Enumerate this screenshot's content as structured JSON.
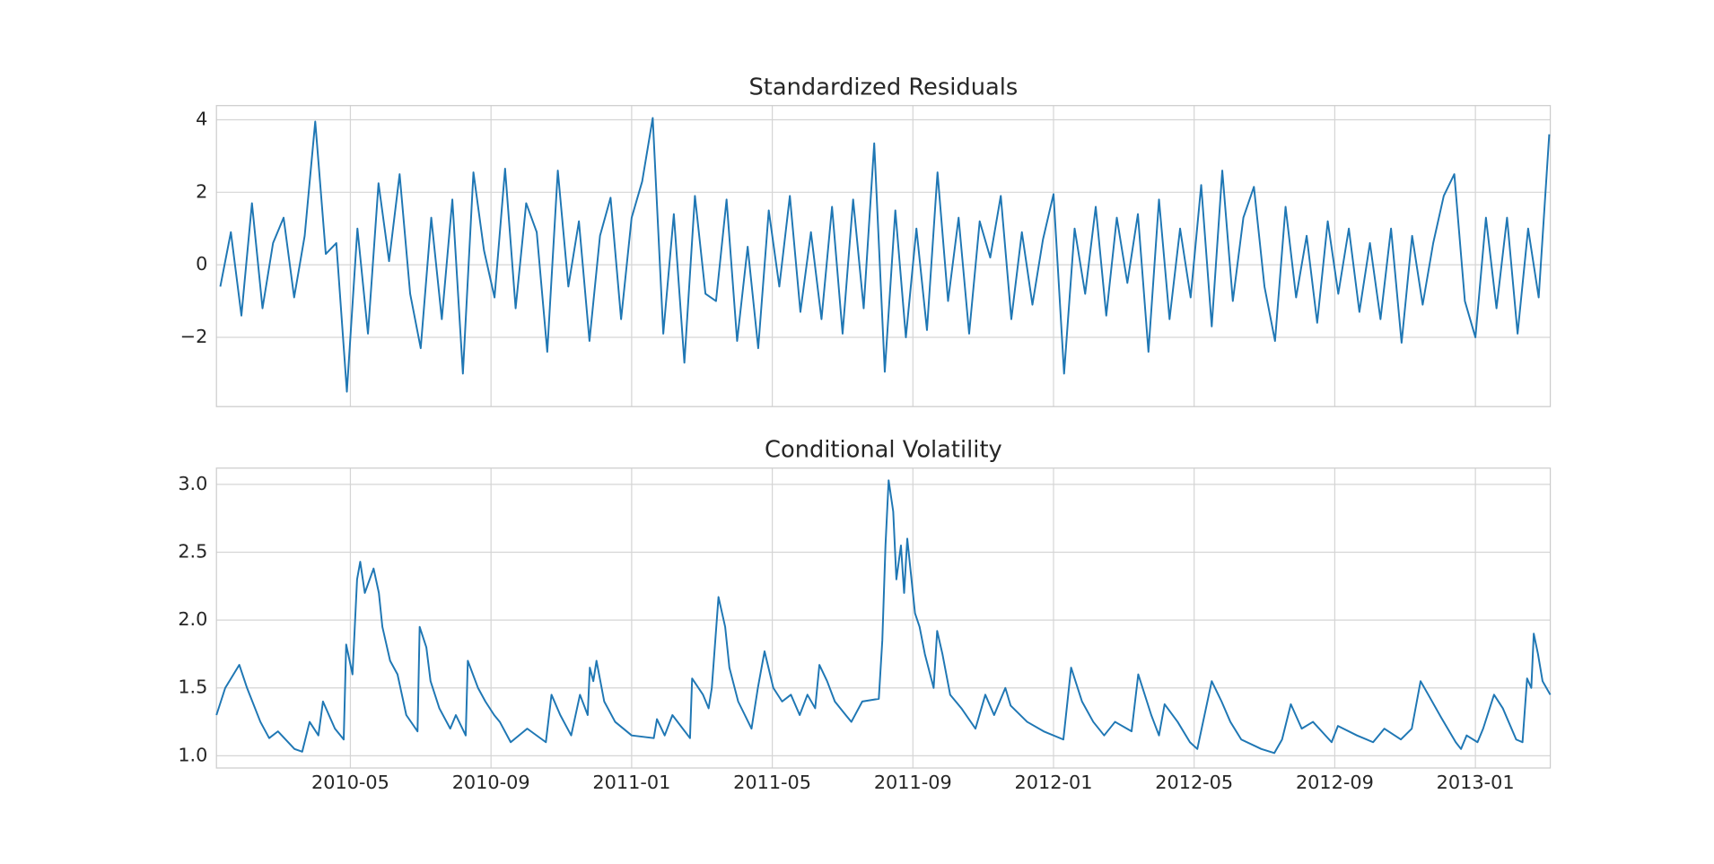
{
  "chart_data": [
    {
      "type": "line",
      "title": "Standardized Residuals",
      "x": [
        0.3,
        0.6,
        0.9,
        1.2,
        1.5,
        1.8,
        2.1,
        2.4,
        2.7,
        3.0,
        3.3,
        3.6,
        3.9,
        4.2,
        4.5,
        4.8,
        5.1,
        5.4,
        5.7,
        6.0,
        6.3,
        6.6,
        6.9,
        7.2,
        7.5,
        7.8,
        8.1,
        8.4,
        8.7,
        9.0,
        9.3,
        9.6,
        9.9,
        10.2,
        10.5,
        10.8,
        11.1,
        11.4,
        11.7,
        12.0,
        12.3,
        12.6,
        12.9,
        13.2,
        13.5,
        13.8,
        14.1,
        14.4,
        14.7,
        15.0,
        15.3,
        15.6,
        15.9,
        16.2,
        16.5,
        16.8,
        17.1,
        17.4,
        17.7,
        18.0,
        18.3,
        18.6,
        18.9,
        19.2,
        19.5,
        19.8,
        20.1,
        20.4,
        20.7,
        21.0,
        21.3,
        21.6,
        21.9,
        22.2,
        22.5,
        22.8,
        23.1,
        23.4,
        23.7,
        24.0,
        24.3,
        24.6,
        24.9,
        25.2,
        25.5,
        25.8,
        26.1,
        26.4,
        26.7,
        27.0,
        27.3,
        27.6,
        27.9,
        28.2,
        28.5,
        28.8,
        29.1,
        29.4,
        29.7,
        30.0,
        30.3,
        30.6,
        30.9,
        31.2,
        31.5,
        31.8,
        32.1,
        32.4,
        32.7,
        33.0,
        33.3,
        33.6,
        33.9,
        34.2,
        34.5,
        34.8,
        35.1,
        35.4,
        35.7,
        36.0,
        36.3,
        36.6,
        36.9,
        37.2,
        37.5,
        37.8,
        38.1
      ],
      "series": [
        {
          "color": "#1f77b4",
          "values": [
            -0.6,
            0.9,
            -1.4,
            1.7,
            -1.2,
            0.6,
            1.3,
            -0.9,
            0.8,
            3.95,
            0.3,
            0.6,
            -3.5,
            1.0,
            -1.9,
            2.25,
            0.1,
            2.5,
            -0.8,
            -2.3,
            1.3,
            -1.5,
            1.8,
            -3.0,
            2.55,
            0.4,
            -0.9,
            2.65,
            -1.2,
            1.7,
            0.9,
            -2.4,
            2.6,
            -0.6,
            1.2,
            -2.1,
            0.8,
            1.85,
            -1.5,
            1.3,
            2.3,
            4.05,
            -1.9,
            1.4,
            -2.7,
            1.9,
            -0.8,
            -1.0,
            1.8,
            -2.1,
            0.5,
            -2.3,
            1.5,
            -0.6,
            1.9,
            -1.3,
            0.9,
            -1.5,
            1.6,
            -1.9,
            1.8,
            -1.2,
            3.35,
            -2.95,
            1.5,
            -2.0,
            1.0,
            -1.8,
            2.55,
            -1.0,
            1.3,
            -1.9,
            1.2,
            0.2,
            1.9,
            -1.5,
            0.9,
            -1.1,
            0.7,
            1.95,
            -3.0,
            1.0,
            -0.8,
            1.6,
            -1.4,
            1.3,
            -0.5,
            1.4,
            -2.4,
            1.8,
            -1.5,
            1.0,
            -0.9,
            2.2,
            -1.7,
            2.6,
            -1.0,
            1.3,
            2.15,
            -0.6,
            -2.1,
            1.6,
            -0.9,
            0.8,
            -1.6,
            1.2,
            -0.8,
            1.0,
            -1.3,
            0.6,
            -1.5,
            1.0,
            -2.15,
            0.8,
            -1.1,
            0.6,
            1.9,
            2.5,
            -1.0,
            -2.0,
            1.3,
            -1.2,
            1.3,
            -1.9,
            1.0,
            -0.9,
            3.6
          ]
        }
      ],
      "xlim": [
        0.19,
        38.13
      ],
      "xticks": [
        4,
        8,
        12,
        16,
        20,
        24,
        28,
        32,
        36
      ],
      "show_xtick_labels": false,
      "ylim": [
        -3.91,
        4.39
      ],
      "yticks": [
        {
          "value": -2,
          "label": "−2"
        },
        0,
        2,
        4
      ],
      "grid": true
    },
    {
      "type": "line",
      "title": "Conditional Volatility",
      "x": [
        0.19,
        0.44,
        0.84,
        1.06,
        1.44,
        1.69,
        1.94,
        2.41,
        2.63,
        2.84,
        3.09,
        3.22,
        3.56,
        3.81,
        3.88,
        4.06,
        4.19,
        4.28,
        4.41,
        4.66,
        4.81,
        4.91,
        5.13,
        5.34,
        5.59,
        5.91,
        5.97,
        6.16,
        6.28,
        6.53,
        6.84,
        7.0,
        7.28,
        7.34,
        7.63,
        7.84,
        8.09,
        8.25,
        8.56,
        9.03,
        9.56,
        9.72,
        9.97,
        10.28,
        10.53,
        10.75,
        10.81,
        10.91,
        11.0,
        11.22,
        11.53,
        12.0,
        12.63,
        12.72,
        12.94,
        13.16,
        13.66,
        13.72,
        14.03,
        14.19,
        14.28,
        14.47,
        14.66,
        14.78,
        15.03,
        15.22,
        15.41,
        15.59,
        15.78,
        16.03,
        16.28,
        16.53,
        16.78,
        17.0,
        17.22,
        17.34,
        17.56,
        17.78,
        18.09,
        18.25,
        18.56,
        19.03,
        19.13,
        19.22,
        19.31,
        19.44,
        19.53,
        19.66,
        19.75,
        19.84,
        20.06,
        20.19,
        20.34,
        20.59,
        20.69,
        20.84,
        21.06,
        21.38,
        21.78,
        22.06,
        22.31,
        22.63,
        22.78,
        23.25,
        23.72,
        24.28,
        24.5,
        24.81,
        25.13,
        25.44,
        25.75,
        26.22,
        26.41,
        26.78,
        27.0,
        27.16,
        27.53,
        27.88,
        28.09,
        28.5,
        28.78,
        29.03,
        29.34,
        29.91,
        30.28,
        30.5,
        30.75,
        31.06,
        31.38,
        31.91,
        32.09,
        32.63,
        33.09,
        33.41,
        33.88,
        34.19,
        34.44,
        34.66,
        35.03,
        35.44,
        35.59,
        35.75,
        36.06,
        36.22,
        36.53,
        36.78,
        37.16,
        37.34,
        37.47,
        37.59,
        37.66,
        37.78,
        37.91,
        38.13
      ],
      "series": [
        {
          "color": "#1f77b4",
          "values": [
            1.3,
            1.5,
            1.67,
            1.5,
            1.25,
            1.13,
            1.18,
            1.05,
            1.03,
            1.25,
            1.15,
            1.4,
            1.2,
            1.12,
            1.82,
            1.6,
            2.3,
            2.43,
            2.2,
            2.38,
            2.2,
            1.95,
            1.7,
            1.6,
            1.3,
            1.18,
            1.95,
            1.8,
            1.55,
            1.35,
            1.2,
            1.3,
            1.15,
            1.7,
            1.5,
            1.4,
            1.3,
            1.25,
            1.1,
            1.2,
            1.1,
            1.45,
            1.3,
            1.15,
            1.45,
            1.3,
            1.65,
            1.55,
            1.7,
            1.4,
            1.25,
            1.15,
            1.13,
            1.27,
            1.15,
            1.3,
            1.13,
            1.57,
            1.45,
            1.35,
            1.5,
            2.17,
            1.95,
            1.65,
            1.4,
            1.3,
            1.2,
            1.5,
            1.77,
            1.5,
            1.4,
            1.45,
            1.3,
            1.45,
            1.35,
            1.67,
            1.55,
            1.4,
            1.3,
            1.25,
            1.4,
            1.42,
            1.85,
            2.55,
            3.03,
            2.8,
            2.3,
            2.55,
            2.2,
            2.6,
            2.05,
            1.95,
            1.75,
            1.5,
            1.92,
            1.75,
            1.45,
            1.35,
            1.2,
            1.45,
            1.3,
            1.5,
            1.37,
            1.25,
            1.18,
            1.12,
            1.65,
            1.4,
            1.25,
            1.15,
            1.25,
            1.18,
            1.6,
            1.3,
            1.15,
            1.38,
            1.25,
            1.1,
            1.05,
            1.55,
            1.4,
            1.25,
            1.12,
            1.05,
            1.02,
            1.12,
            1.38,
            1.2,
            1.25,
            1.1,
            1.22,
            1.15,
            1.1,
            1.2,
            1.12,
            1.2,
            1.55,
            1.45,
            1.28,
            1.1,
            1.05,
            1.15,
            1.1,
            1.2,
            1.45,
            1.35,
            1.12,
            1.1,
            1.57,
            1.5,
            1.9,
            1.75,
            1.55,
            1.45
          ]
        }
      ],
      "xlim": [
        0.19,
        38.13
      ],
      "xticks": [
        {
          "value": 4,
          "label": "2010-05"
        },
        {
          "value": 8,
          "label": "2010-09"
        },
        {
          "value": 12,
          "label": "2011-01"
        },
        {
          "value": 16,
          "label": "2011-05"
        },
        {
          "value": 20,
          "label": "2011-09"
        },
        {
          "value": 24,
          "label": "2012-01"
        },
        {
          "value": 28,
          "label": "2012-05"
        },
        {
          "value": 32,
          "label": "2012-09"
        },
        {
          "value": 36,
          "label": "2013-01"
        }
      ],
      "show_xtick_labels": true,
      "ylim": [
        0.91,
        3.12
      ],
      "yticks": [
        {
          "value": 1,
          "label": "1.0"
        },
        1.5,
        {
          "value": 2,
          "label": "2.0"
        },
        2.5,
        {
          "value": 3,
          "label": "3.0"
        }
      ],
      "grid": true
    }
  ]
}
